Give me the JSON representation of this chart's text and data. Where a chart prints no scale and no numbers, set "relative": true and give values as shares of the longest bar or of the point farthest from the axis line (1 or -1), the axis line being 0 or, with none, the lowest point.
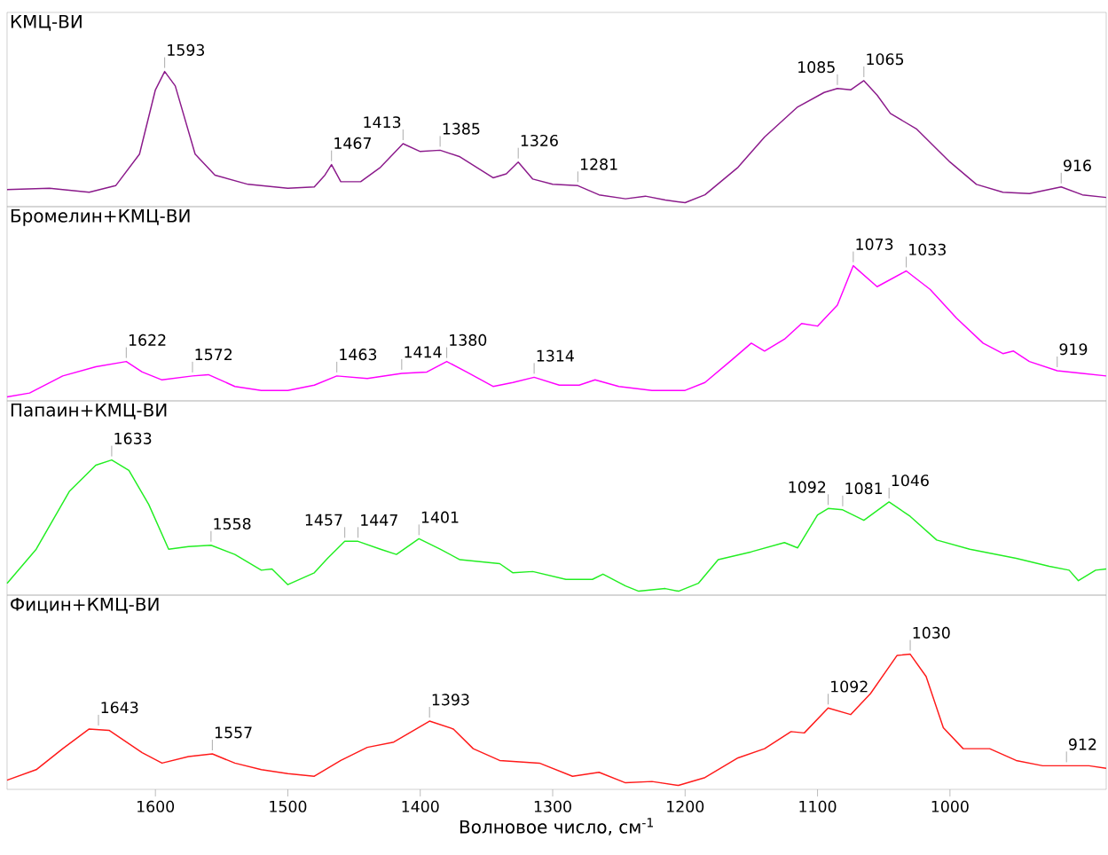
{
  "chart_data": [
    {
      "type": "line",
      "title": "КМЦ-ВИ",
      "relative": true,
      "color": "#8b1a8b",
      "xlim": [
        1712,
        882
      ],
      "x": [
        1712,
        1680,
        1650,
        1630,
        1612,
        1600,
        1593,
        1585,
        1570,
        1555,
        1530,
        1500,
        1480,
        1472,
        1467,
        1460,
        1445,
        1430,
        1413,
        1400,
        1385,
        1370,
        1345,
        1335,
        1326,
        1315,
        1300,
        1281,
        1265,
        1245,
        1230,
        1215,
        1200,
        1185,
        1160,
        1140,
        1115,
        1095,
        1085,
        1075,
        1065,
        1055,
        1045,
        1025,
        1000,
        980,
        960,
        940,
        916,
        900,
        882
      ],
      "values": [
        0.1,
        0.11,
        0.08,
        0.13,
        0.37,
        0.86,
        1.0,
        0.89,
        0.37,
        0.21,
        0.14,
        0.11,
        0.12,
        0.21,
        0.29,
        0.16,
        0.16,
        0.27,
        0.45,
        0.39,
        0.4,
        0.35,
        0.19,
        0.22,
        0.31,
        0.18,
        0.14,
        0.13,
        0.06,
        0.03,
        0.05,
        0.02,
        0.0,
        0.06,
        0.27,
        0.5,
        0.73,
        0.84,
        0.87,
        0.86,
        0.93,
        0.82,
        0.68,
        0.56,
        0.31,
        0.14,
        0.08,
        0.07,
        0.12,
        0.06,
        0.04
      ],
      "annotations": [
        {
          "text": "1593",
          "x": 1593,
          "y": 1.0
        },
        {
          "text": "1467",
          "x": 1467,
          "y": 0.29
        },
        {
          "text": "1413",
          "x": 1413,
          "y": 0.45
        },
        {
          "text": "1385",
          "x": 1385,
          "y": 0.4
        },
        {
          "text": "1326",
          "x": 1326,
          "y": 0.31
        },
        {
          "text": "1281",
          "x": 1281,
          "y": 0.13
        },
        {
          "text": "1085",
          "x": 1085,
          "y": 0.87
        },
        {
          "text": "1065",
          "x": 1065,
          "y": 0.93
        },
        {
          "text": "916",
          "x": 916,
          "y": 0.12
        }
      ]
    },
    {
      "type": "line",
      "title": "Бромелин+КМЦ-ВИ",
      "relative": true,
      "color": "#ff00ff",
      "xlim": [
        1712,
        882
      ],
      "x": [
        1712,
        1695,
        1670,
        1645,
        1622,
        1610,
        1595,
        1572,
        1560,
        1540,
        1520,
        1500,
        1480,
        1463,
        1440,
        1414,
        1395,
        1380,
        1365,
        1345,
        1330,
        1314,
        1295,
        1280,
        1268,
        1250,
        1225,
        1200,
        1185,
        1165,
        1150,
        1140,
        1125,
        1112,
        1100,
        1085,
        1073,
        1055,
        1033,
        1015,
        995,
        975,
        960,
        952,
        940,
        919,
        900,
        882
      ],
      "values": [
        0.0,
        0.03,
        0.16,
        0.23,
        0.27,
        0.19,
        0.13,
        0.16,
        0.17,
        0.08,
        0.05,
        0.05,
        0.09,
        0.16,
        0.14,
        0.18,
        0.19,
        0.27,
        0.19,
        0.08,
        0.11,
        0.15,
        0.09,
        0.09,
        0.13,
        0.08,
        0.05,
        0.05,
        0.11,
        0.28,
        0.41,
        0.35,
        0.44,
        0.56,
        0.54,
        0.7,
        1.0,
        0.84,
        0.96,
        0.82,
        0.6,
        0.41,
        0.33,
        0.35,
        0.27,
        0.2,
        0.18,
        0.16
      ],
      "annotations": [
        {
          "text": "1622",
          "x": 1622,
          "y": 0.27
        },
        {
          "text": "1572",
          "x": 1572,
          "y": 0.16
        },
        {
          "text": "1463",
          "x": 1463,
          "y": 0.16
        },
        {
          "text": "1414",
          "x": 1414,
          "y": 0.18
        },
        {
          "text": "1380",
          "x": 1380,
          "y": 0.27
        },
        {
          "text": "1314",
          "x": 1314,
          "y": 0.15
        },
        {
          "text": "1073",
          "x": 1073,
          "y": 1.0
        },
        {
          "text": "1033",
          "x": 1033,
          "y": 0.96
        },
        {
          "text": "919",
          "x": 919,
          "y": 0.2
        }
      ]
    },
    {
      "type": "line",
      "title": "Папаин+КМЦ-ВИ",
      "relative": true,
      "color": "#22ee22",
      "xlim": [
        1712,
        882
      ],
      "x": [
        1712,
        1690,
        1665,
        1645,
        1633,
        1620,
        1605,
        1590,
        1575,
        1558,
        1540,
        1520,
        1512,
        1500,
        1480,
        1470,
        1457,
        1447,
        1430,
        1418,
        1401,
        1385,
        1370,
        1340,
        1330,
        1315,
        1290,
        1270,
        1262,
        1245,
        1235,
        1215,
        1205,
        1190,
        1175,
        1150,
        1125,
        1115,
        1100,
        1092,
        1081,
        1065,
        1046,
        1030,
        1010,
        985,
        950,
        925,
        910,
        903,
        890,
        882
      ],
      "values": [
        0.06,
        0.32,
        0.76,
        0.96,
        1.0,
        0.92,
        0.66,
        0.32,
        0.34,
        0.35,
        0.28,
        0.16,
        0.17,
        0.05,
        0.14,
        0.25,
        0.38,
        0.38,
        0.32,
        0.28,
        0.4,
        0.32,
        0.24,
        0.21,
        0.14,
        0.15,
        0.09,
        0.09,
        0.13,
        0.04,
        0.0,
        0.02,
        0.0,
        0.06,
        0.24,
        0.3,
        0.37,
        0.33,
        0.58,
        0.63,
        0.62,
        0.54,
        0.68,
        0.57,
        0.39,
        0.32,
        0.25,
        0.19,
        0.16,
        0.08,
        0.16,
        0.17
      ],
      "annotations": [
        {
          "text": "1633",
          "x": 1633,
          "y": 1.0
        },
        {
          "text": "1558",
          "x": 1558,
          "y": 0.35
        },
        {
          "text": "1457",
          "x": 1457,
          "y": 0.38
        },
        {
          "text": "1447",
          "x": 1447,
          "y": 0.38
        },
        {
          "text": "1401",
          "x": 1401,
          "y": 0.4
        },
        {
          "text": "1092",
          "x": 1092,
          "y": 0.63
        },
        {
          "text": "1081",
          "x": 1081,
          "y": 0.62
        },
        {
          "text": "1046",
          "x": 1046,
          "y": 0.68
        }
      ]
    },
    {
      "type": "line",
      "title": "Фицин+КМЦ-ВИ",
      "relative": true,
      "color": "#ff1a1a",
      "xlim": [
        1712,
        882
      ],
      "xlabel": "Волновое число, см$^{-1}$",
      "xticks": [
        1000,
        1100,
        1200,
        1300,
        1400,
        1500,
        1600
      ],
      "x": [
        1712,
        1690,
        1670,
        1650,
        1635,
        1610,
        1595,
        1575,
        1557,
        1540,
        1520,
        1500,
        1480,
        1460,
        1440,
        1420,
        1393,
        1375,
        1360,
        1340,
        1310,
        1285,
        1265,
        1245,
        1225,
        1205,
        1185,
        1160,
        1140,
        1120,
        1110,
        1092,
        1075,
        1060,
        1040,
        1030,
        1018,
        1005,
        990,
        970,
        950,
        930,
        912,
        895,
        882
      ],
      "values": [
        0.04,
        0.12,
        0.28,
        0.43,
        0.42,
        0.25,
        0.17,
        0.22,
        0.24,
        0.17,
        0.12,
        0.09,
        0.07,
        0.19,
        0.29,
        0.33,
        0.49,
        0.43,
        0.28,
        0.19,
        0.17,
        0.07,
        0.1,
        0.02,
        0.03,
        0.0,
        0.06,
        0.21,
        0.28,
        0.41,
        0.4,
        0.59,
        0.54,
        0.7,
        0.99,
        1.0,
        0.83,
        0.44,
        0.28,
        0.28,
        0.19,
        0.15,
        0.15,
        0.15,
        0.13
      ],
      "annotations": [
        {
          "text": "1643",
          "x": 1643,
          "y": 0.43
        },
        {
          "text": "1557",
          "x": 1557,
          "y": 0.24
        },
        {
          "text": "1393",
          "x": 1393,
          "y": 0.49
        },
        {
          "text": "1092",
          "x": 1092,
          "y": 0.59
        },
        {
          "text": "1030",
          "x": 1030,
          "y": 1.0
        },
        {
          "text": "912",
          "x": 912,
          "y": 0.15
        }
      ]
    }
  ]
}
